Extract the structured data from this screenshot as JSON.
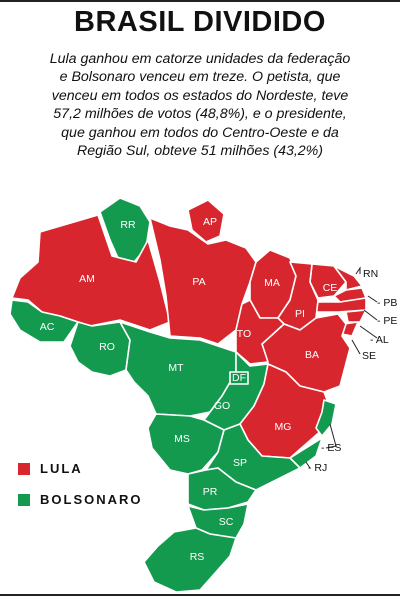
{
  "header": {
    "title": "BRASIL DIVIDIDO",
    "lede_lines": [
      "Lula ganhou em catorze unidades da federação",
      "e Bolsonaro venceu em treze. O petista, que",
      "venceu em todos os estados do Nordeste, teve",
      "57,2 milhões de votos (48,8%), e o presidente,",
      "que ganhou em todos do Centro-Oeste e da",
      "Região Sul, obteve 51 milhões (43,2%)"
    ]
  },
  "colors": {
    "lula": "#d7262d",
    "bolsonaro": "#149a4f",
    "border": "#ffffff",
    "text": "#111111"
  },
  "legend": [
    {
      "label": "LULA",
      "winner": "lula"
    },
    {
      "label": "BOLSONARO",
      "winner": "bolsonaro"
    }
  ],
  "states": [
    {
      "code": "RR",
      "winner": "bolsonaro"
    },
    {
      "code": "AP",
      "winner": "lula"
    },
    {
      "code": "AM",
      "winner": "lula"
    },
    {
      "code": "PA",
      "winner": "lula"
    },
    {
      "code": "MA",
      "winner": "lula"
    },
    {
      "code": "CE",
      "winner": "lula"
    },
    {
      "code": "RN",
      "winner": "lula"
    },
    {
      "code": "PB",
      "winner": "lula"
    },
    {
      "code": "PE",
      "winner": "lula"
    },
    {
      "code": "AL",
      "winner": "lula"
    },
    {
      "code": "SE",
      "winner": "lula"
    },
    {
      "code": "PI",
      "winner": "lula"
    },
    {
      "code": "BA",
      "winner": "lula"
    },
    {
      "code": "TO",
      "winner": "lula"
    },
    {
      "code": "AC",
      "winner": "bolsonaro"
    },
    {
      "code": "RO",
      "winner": "bolsonaro"
    },
    {
      "code": "MT",
      "winner": "bolsonaro"
    },
    {
      "code": "DF",
      "winner": "bolsonaro"
    },
    {
      "code": "GO",
      "winner": "bolsonaro"
    },
    {
      "code": "MG",
      "winner": "lula"
    },
    {
      "code": "ES",
      "winner": "bolsonaro"
    },
    {
      "code": "RJ",
      "winner": "bolsonaro"
    },
    {
      "code": "MS",
      "winner": "bolsonaro"
    },
    {
      "code": "SP",
      "winner": "bolsonaro"
    },
    {
      "code": "PR",
      "winner": "bolsonaro"
    },
    {
      "code": "SC",
      "winner": "bolsonaro"
    },
    {
      "code": "RS",
      "winner": "bolsonaro"
    }
  ]
}
